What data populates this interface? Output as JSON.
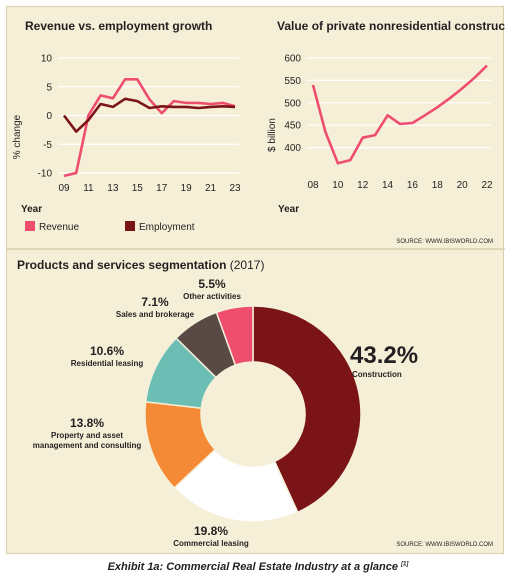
{
  "colors": {
    "background": "#f5efd8",
    "revenue": "#ef4d6e",
    "employment": "#7b1416",
    "construction_line": "#ef4d6e",
    "grid": "#ffffff",
    "text": "#231f20"
  },
  "source_text": "SOURCE: WWW.IBISWORLD.COM",
  "caption": {
    "text": "Exhibit 1a: Commercial Real Estate Industry at a glance",
    "note": "[1]"
  },
  "chart_data": [
    {
      "type": "line",
      "title": "Revenue vs. employment growth",
      "ylabel": "% change",
      "xlabel_prefix": "Year",
      "x": [
        9,
        10,
        11,
        12,
        13,
        14,
        15,
        16,
        17,
        18,
        19,
        20,
        21,
        22,
        23
      ],
      "xticks": [
        9,
        11,
        13,
        15,
        17,
        19,
        21,
        23
      ],
      "xtick_labels": [
        "09",
        "11",
        "13",
        "15",
        "17",
        "19",
        "21",
        "23"
      ],
      "ylim": [
        -10,
        10
      ],
      "yticks": [
        10,
        5,
        0,
        -5,
        -10
      ],
      "grid": true,
      "legend_placement": "bottom",
      "series": [
        {
          "name": "Revenue",
          "color": "#ef4d6e",
          "values": [
            -10.5,
            -10,
            0,
            3.5,
            3,
            6.3,
            6.3,
            2.8,
            0.4,
            2.5,
            2.2,
            2.2,
            2.0,
            2.2,
            1.6
          ]
        },
        {
          "name": "Employment",
          "color": "#7b1416",
          "values": [
            0,
            -2.8,
            -0.8,
            2.0,
            1.5,
            2.9,
            2.5,
            1.3,
            1.6,
            1.5,
            1.5,
            1.3,
            1.5,
            1.6,
            1.5
          ]
        }
      ]
    },
    {
      "type": "line",
      "title": "Value of private nonresidential construction",
      "ylabel": "$ billion",
      "xlabel_prefix": "Year",
      "x": [
        8,
        9,
        10,
        11,
        12,
        13,
        14,
        15,
        16,
        17,
        18,
        19,
        20,
        21,
        22
      ],
      "xticks": [
        8,
        10,
        12,
        14,
        16,
        18,
        20,
        22
      ],
      "xtick_labels": [
        "08",
        "10",
        "12",
        "14",
        "16",
        "18",
        "20",
        "22"
      ],
      "ylim": [
        350,
        600
      ],
      "yticks": [
        600,
        550,
        500,
        450,
        400
      ],
      "grid": true,
      "series": [
        {
          "name": "",
          "color": "#ef4d6e",
          "values": [
            540,
            435,
            365,
            372,
            422,
            428,
            472,
            453,
            455,
            472,
            490,
            510,
            532,
            556,
            583
          ]
        }
      ]
    },
    {
      "type": "pie",
      "donut": true,
      "title": "Products and services segmentation",
      "title_year": "(2017)",
      "segments": [
        {
          "label": "Construction",
          "percent_text": "43.2%",
          "value": 43.2,
          "color": "#7b1416"
        },
        {
          "label": "Commercial leasing",
          "percent_text": "19.8%",
          "value": 19.8,
          "color": "#ffffff"
        },
        {
          "label": "Property and asset management and consulting",
          "label_lines": [
            "Property and asset",
            "management and consulting"
          ],
          "percent_text": "13.8%",
          "value": 13.8,
          "color": "#f48a35"
        },
        {
          "label": "Residential leasing",
          "percent_text": "10.6%",
          "value": 10.6,
          "color": "#6cbdb4"
        },
        {
          "label": "Sales and brokerage",
          "percent_text": "7.1%",
          "value": 7.1,
          "color": "#5a4a46"
        },
        {
          "label": "Other activities",
          "percent_text": "5.5%",
          "value": 5.5,
          "color": "#ef4d6e"
        }
      ]
    }
  ]
}
